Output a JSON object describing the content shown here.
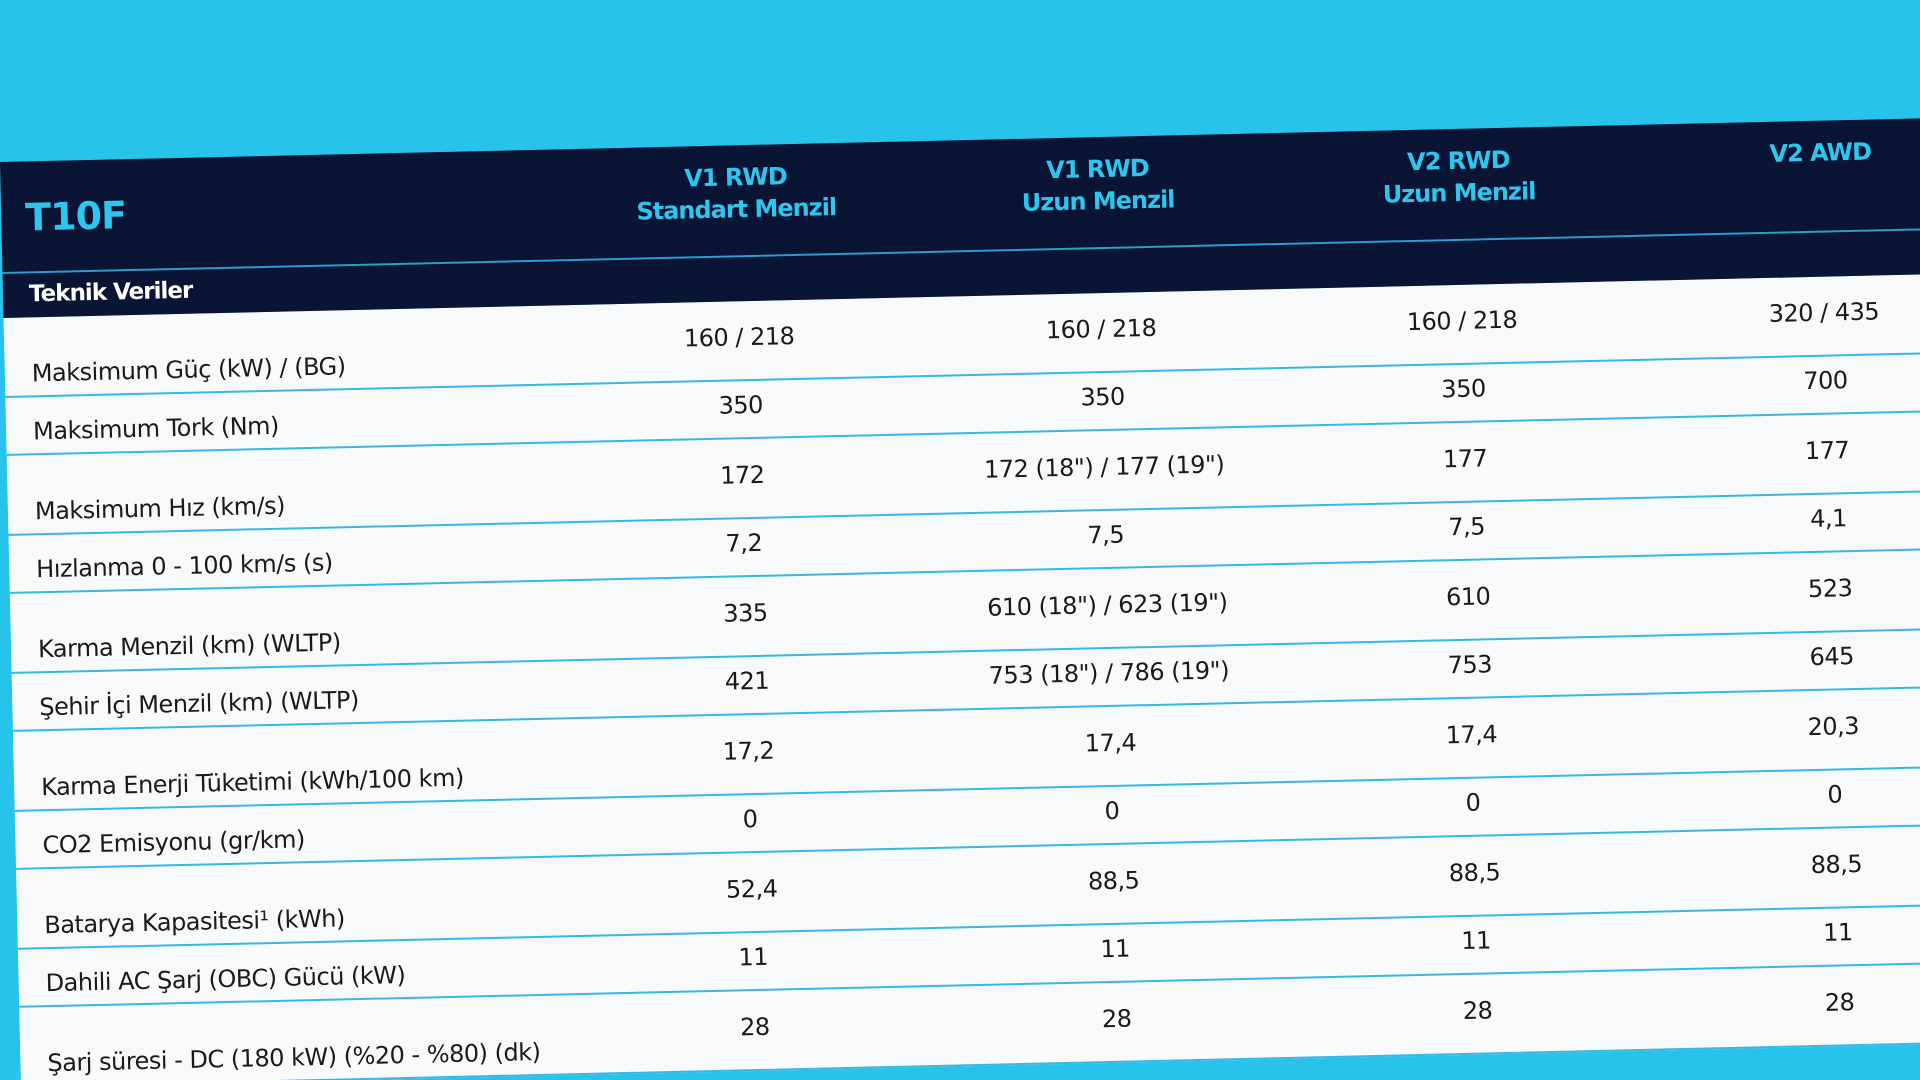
{
  "table": {
    "model": "T10F",
    "section": "Teknik Veriler",
    "variants": [
      {
        "line1": "V1 RWD",
        "line2": "Standart Menzil"
      },
      {
        "line1": "V1 RWD",
        "line2": "Uzun Menzil"
      },
      {
        "line1": "V2 RWD",
        "line2": "Uzun Menzil"
      },
      {
        "line1": "V2 AWD",
        "line2": ""
      }
    ],
    "rows": [
      {
        "label": "Maksimum Güç (kW) / (BG)",
        "values": [
          "160 / 218",
          "160 / 218",
          "160 / 218",
          "320 / 435"
        ]
      },
      {
        "label": "Maksimum Tork (Nm)",
        "values": [
          "350",
          "350",
          "350",
          "700"
        ]
      },
      {
        "label": "Maksimum Hız (km/s)",
        "values": [
          "172",
          "172 (18\") / 177 (19\")",
          "177",
          "177"
        ]
      },
      {
        "label": "Hızlanma 0 - 100 km/s (s)",
        "values": [
          "7,2",
          "7,5",
          "7,5",
          "4,1"
        ]
      },
      {
        "label": "Karma Menzil (km) (WLTP)",
        "values": [
          "335",
          "610 (18\") / 623 (19\")",
          "610",
          "523"
        ]
      },
      {
        "label": "Şehir İçi Menzil (km) (WLTP)",
        "values": [
          "421",
          "753 (18\") / 786 (19\")",
          "753",
          "645"
        ]
      },
      {
        "label": "Karma Enerji Tüketimi (kWh/100 km)",
        "values": [
          "17,2",
          "17,4",
          "17,4",
          "20,3"
        ]
      },
      {
        "label": "CO2 Emisyonu (gr/km)",
        "values": [
          "0",
          "0",
          "0",
          "0"
        ]
      },
      {
        "label": "Batarya Kapasitesi¹ (kWh)",
        "values": [
          "52,4",
          "88,5",
          "88,5",
          "88,5"
        ]
      },
      {
        "label": "Dahili AC Şarj (OBC) Gücü (kW)",
        "values": [
          "11",
          "11",
          "11",
          "11"
        ]
      },
      {
        "label": "Şarj süresi - DC (180 kW) (%20 - %80) (dk)",
        "values": [
          "28",
          "28",
          "28",
          "28"
        ]
      }
    ]
  },
  "colors": {
    "background": "#27c3ea",
    "header": "#0a1434",
    "accent": "#2ec6ee",
    "divider": "#38b7e4",
    "row_bg": "#f8f9fb"
  }
}
